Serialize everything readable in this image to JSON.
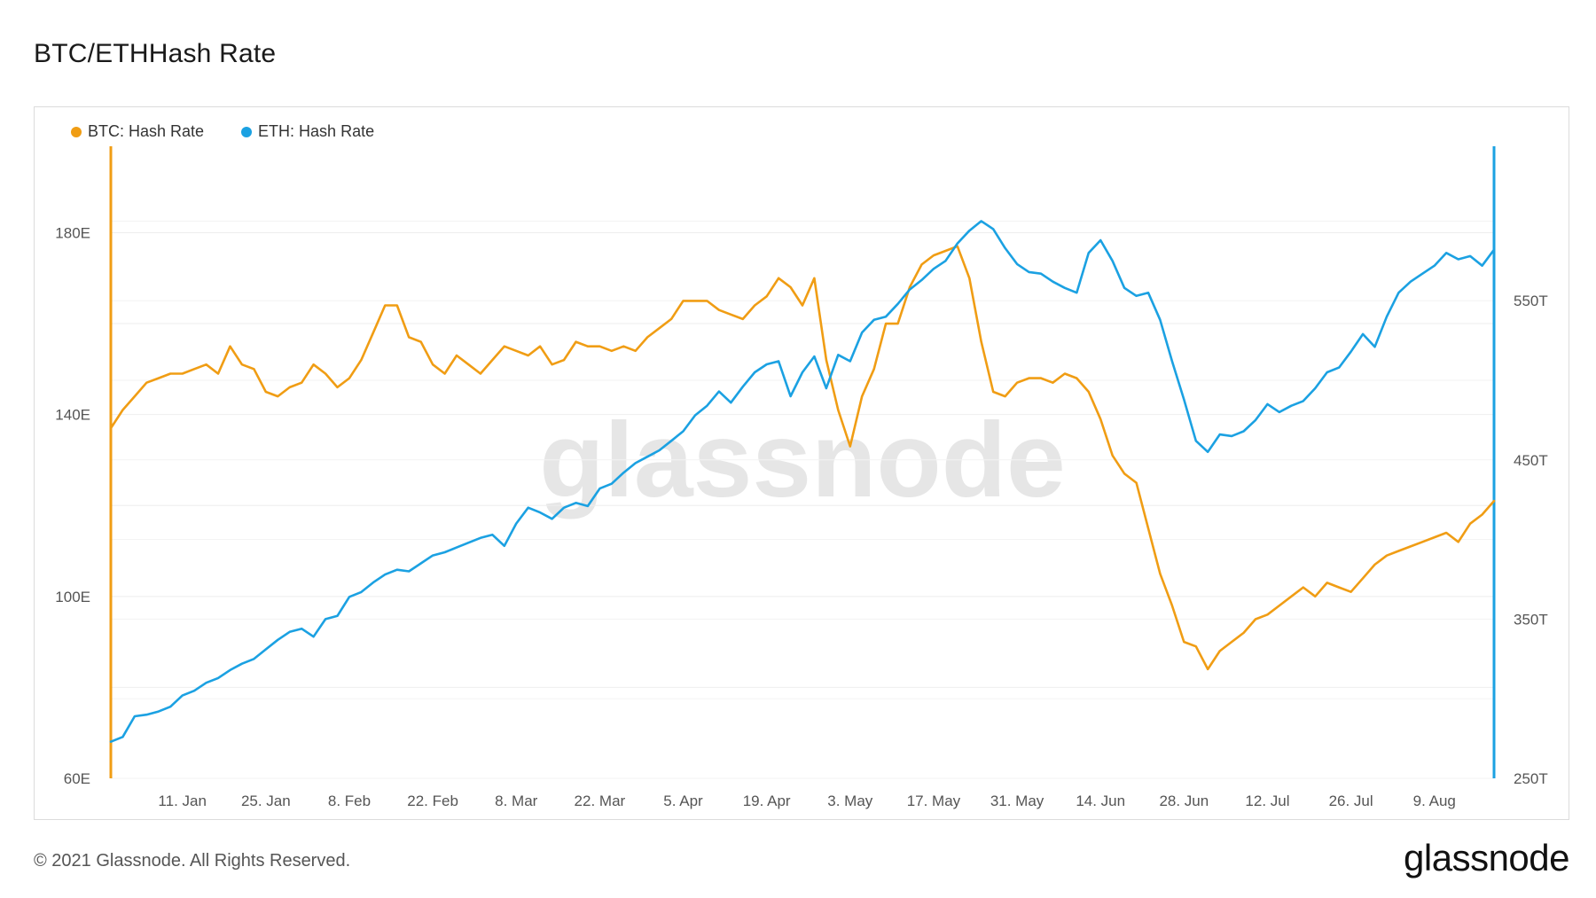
{
  "title": "BTC/ETHHash Rate",
  "legend": [
    {
      "label": "BTC: Hash Rate",
      "color": "#f09d14"
    },
    {
      "label": "ETH: Hash Rate",
      "color": "#1ba1e2"
    }
  ],
  "watermark": "glassnode",
  "footer": {
    "copyright": "© 2021 Glassnode. All Rights Reserved.",
    "logo": "glassnode"
  },
  "chart_data": {
    "type": "line",
    "title": "BTC/ETHHash Rate",
    "grid": true,
    "legend_position": "top-left",
    "x_start": "2020-12-30",
    "x_end": "2021-08-19",
    "x_ticks": [
      "11. Jan",
      "25. Jan",
      "8. Feb",
      "22. Feb",
      "8. Mar",
      "22. Mar",
      "5. Apr",
      "19. Apr",
      "3. May",
      "17. May",
      "31. May",
      "14. Jun",
      "28. Jun",
      "12. Jul",
      "26. Jul",
      "9. Aug"
    ],
    "x_tick_dates": [
      "2021-01-11",
      "2021-01-25",
      "2021-02-08",
      "2021-02-22",
      "2021-03-08",
      "2021-03-22",
      "2021-04-05",
      "2021-04-19",
      "2021-05-03",
      "2021-05-17",
      "2021-05-31",
      "2021-06-14",
      "2021-06-28",
      "2021-07-12",
      "2021-07-26",
      "2021-08-09"
    ],
    "y_left": {
      "ticks": [
        "60E",
        "100E",
        "140E",
        "180E"
      ],
      "tick_values": [
        60,
        100,
        140,
        180
      ],
      "range": [
        60,
        199
      ]
    },
    "y_right": {
      "ticks": [
        "250T",
        "350T",
        "450T",
        "550T"
      ],
      "tick_values": [
        250,
        350,
        450,
        550
      ],
      "range": [
        250,
        647
      ]
    },
    "series": [
      {
        "name": "BTC: Hash Rate",
        "axis": "left",
        "color": "#f09d14",
        "points": [
          [
            "2020-12-30",
            137
          ],
          [
            "2021-01-01",
            141
          ],
          [
            "2021-01-03",
            144
          ],
          [
            "2021-01-05",
            147
          ],
          [
            "2021-01-07",
            148
          ],
          [
            "2021-01-09",
            149
          ],
          [
            "2021-01-11",
            149
          ],
          [
            "2021-01-13",
            150
          ],
          [
            "2021-01-15",
            151
          ],
          [
            "2021-01-17",
            149
          ],
          [
            "2021-01-19",
            155
          ],
          [
            "2021-01-21",
            151
          ],
          [
            "2021-01-23",
            150
          ],
          [
            "2021-01-25",
            145
          ],
          [
            "2021-01-27",
            144
          ],
          [
            "2021-01-29",
            146
          ],
          [
            "2021-01-31",
            147
          ],
          [
            "2021-02-02",
            151
          ],
          [
            "2021-02-04",
            149
          ],
          [
            "2021-02-06",
            146
          ],
          [
            "2021-02-08",
            148
          ],
          [
            "2021-02-10",
            152
          ],
          [
            "2021-02-12",
            158
          ],
          [
            "2021-02-14",
            164
          ],
          [
            "2021-02-16",
            164
          ],
          [
            "2021-02-18",
            157
          ],
          [
            "2021-02-20",
            156
          ],
          [
            "2021-02-22",
            151
          ],
          [
            "2021-02-24",
            149
          ],
          [
            "2021-02-26",
            153
          ],
          [
            "2021-02-28",
            151
          ],
          [
            "2021-03-02",
            149
          ],
          [
            "2021-03-04",
            152
          ],
          [
            "2021-03-06",
            155
          ],
          [
            "2021-03-08",
            154
          ],
          [
            "2021-03-10",
            153
          ],
          [
            "2021-03-12",
            155
          ],
          [
            "2021-03-14",
            151
          ],
          [
            "2021-03-16",
            152
          ],
          [
            "2021-03-18",
            156
          ],
          [
            "2021-03-20",
            155
          ],
          [
            "2021-03-22",
            155
          ],
          [
            "2021-03-24",
            154
          ],
          [
            "2021-03-26",
            155
          ],
          [
            "2021-03-28",
            154
          ],
          [
            "2021-03-30",
            157
          ],
          [
            "2021-04-01",
            159
          ],
          [
            "2021-04-03",
            161
          ],
          [
            "2021-04-05",
            165
          ],
          [
            "2021-04-07",
            165
          ],
          [
            "2021-04-09",
            165
          ],
          [
            "2021-04-11",
            163
          ],
          [
            "2021-04-13",
            162
          ],
          [
            "2021-04-15",
            161
          ],
          [
            "2021-04-17",
            164
          ],
          [
            "2021-04-19",
            166
          ],
          [
            "2021-04-21",
            170
          ],
          [
            "2021-04-23",
            168
          ],
          [
            "2021-04-25",
            164
          ],
          [
            "2021-04-27",
            170
          ],
          [
            "2021-04-29",
            152
          ],
          [
            "2021-05-01",
            141
          ],
          [
            "2021-05-03",
            133
          ],
          [
            "2021-05-05",
            144
          ],
          [
            "2021-05-07",
            150
          ],
          [
            "2021-05-09",
            160
          ],
          [
            "2021-05-11",
            160
          ],
          [
            "2021-05-13",
            168
          ],
          [
            "2021-05-15",
            173
          ],
          [
            "2021-05-17",
            175
          ],
          [
            "2021-05-19",
            176
          ],
          [
            "2021-05-21",
            177
          ],
          [
            "2021-05-23",
            170
          ],
          [
            "2021-05-25",
            156
          ],
          [
            "2021-05-27",
            145
          ],
          [
            "2021-05-29",
            144
          ],
          [
            "2021-05-31",
            147
          ],
          [
            "2021-06-02",
            148
          ],
          [
            "2021-06-04",
            148
          ],
          [
            "2021-06-06",
            147
          ],
          [
            "2021-06-08",
            149
          ],
          [
            "2021-06-10",
            148
          ],
          [
            "2021-06-12",
            145
          ],
          [
            "2021-06-14",
            139
          ],
          [
            "2021-06-16",
            131
          ],
          [
            "2021-06-18",
            127
          ],
          [
            "2021-06-20",
            125
          ],
          [
            "2021-06-22",
            115
          ],
          [
            "2021-06-24",
            105
          ],
          [
            "2021-06-26",
            98
          ],
          [
            "2021-06-28",
            90
          ],
          [
            "2021-06-30",
            89
          ],
          [
            "2021-07-02",
            84
          ],
          [
            "2021-07-04",
            88
          ],
          [
            "2021-07-06",
            90
          ],
          [
            "2021-07-08",
            92
          ],
          [
            "2021-07-10",
            95
          ],
          [
            "2021-07-12",
            96
          ],
          [
            "2021-07-14",
            98
          ],
          [
            "2021-07-16",
            100
          ],
          [
            "2021-07-18",
            102
          ],
          [
            "2021-07-20",
            100
          ],
          [
            "2021-07-22",
            103
          ],
          [
            "2021-07-24",
            102
          ],
          [
            "2021-07-26",
            101
          ],
          [
            "2021-07-28",
            104
          ],
          [
            "2021-07-30",
            107
          ],
          [
            "2021-08-01",
            109
          ],
          [
            "2021-08-03",
            110
          ],
          [
            "2021-08-05",
            111
          ],
          [
            "2021-08-07",
            112
          ],
          [
            "2021-08-09",
            113
          ],
          [
            "2021-08-11",
            114
          ],
          [
            "2021-08-13",
            112
          ],
          [
            "2021-08-15",
            116
          ],
          [
            "2021-08-17",
            118
          ],
          [
            "2021-08-19",
            121
          ]
        ]
      },
      {
        "name": "ETH: Hash Rate",
        "axis": "right",
        "color": "#1ba1e2",
        "points": [
          [
            "2020-12-30",
            273
          ],
          [
            "2021-01-01",
            276
          ],
          [
            "2021-01-03",
            289
          ],
          [
            "2021-01-05",
            290
          ],
          [
            "2021-01-07",
            292
          ],
          [
            "2021-01-09",
            295
          ],
          [
            "2021-01-11",
            302
          ],
          [
            "2021-01-13",
            305
          ],
          [
            "2021-01-15",
            310
          ],
          [
            "2021-01-17",
            313
          ],
          [
            "2021-01-19",
            318
          ],
          [
            "2021-01-21",
            322
          ],
          [
            "2021-01-23",
            325
          ],
          [
            "2021-01-25",
            331
          ],
          [
            "2021-01-27",
            337
          ],
          [
            "2021-01-29",
            342
          ],
          [
            "2021-01-31",
            344
          ],
          [
            "2021-02-02",
            339
          ],
          [
            "2021-02-04",
            350
          ],
          [
            "2021-02-06",
            352
          ],
          [
            "2021-02-08",
            364
          ],
          [
            "2021-02-10",
            367
          ],
          [
            "2021-02-12",
            373
          ],
          [
            "2021-02-14",
            378
          ],
          [
            "2021-02-16",
            381
          ],
          [
            "2021-02-18",
            380
          ],
          [
            "2021-02-20",
            385
          ],
          [
            "2021-02-22",
            390
          ],
          [
            "2021-02-24",
            392
          ],
          [
            "2021-02-26",
            395
          ],
          [
            "2021-02-28",
            398
          ],
          [
            "2021-03-02",
            401
          ],
          [
            "2021-03-04",
            403
          ],
          [
            "2021-03-06",
            396
          ],
          [
            "2021-03-08",
            410
          ],
          [
            "2021-03-10",
            420
          ],
          [
            "2021-03-12",
            417
          ],
          [
            "2021-03-14",
            413
          ],
          [
            "2021-03-16",
            420
          ],
          [
            "2021-03-18",
            423
          ],
          [
            "2021-03-20",
            421
          ],
          [
            "2021-03-22",
            432
          ],
          [
            "2021-03-24",
            435
          ],
          [
            "2021-03-26",
            442
          ],
          [
            "2021-03-28",
            448
          ],
          [
            "2021-03-30",
            452
          ],
          [
            "2021-04-01",
            456
          ],
          [
            "2021-04-03",
            462
          ],
          [
            "2021-04-05",
            468
          ],
          [
            "2021-04-07",
            478
          ],
          [
            "2021-04-09",
            484
          ],
          [
            "2021-04-11",
            493
          ],
          [
            "2021-04-13",
            486
          ],
          [
            "2021-04-15",
            496
          ],
          [
            "2021-04-17",
            505
          ],
          [
            "2021-04-19",
            510
          ],
          [
            "2021-04-21",
            512
          ],
          [
            "2021-04-23",
            490
          ],
          [
            "2021-04-25",
            505
          ],
          [
            "2021-04-27",
            515
          ],
          [
            "2021-04-29",
            495
          ],
          [
            "2021-05-01",
            516
          ],
          [
            "2021-05-03",
            512
          ],
          [
            "2021-05-05",
            530
          ],
          [
            "2021-05-07",
            538
          ],
          [
            "2021-05-09",
            540
          ],
          [
            "2021-05-11",
            548
          ],
          [
            "2021-05-13",
            557
          ],
          [
            "2021-05-15",
            563
          ],
          [
            "2021-05-17",
            570
          ],
          [
            "2021-05-19",
            575
          ],
          [
            "2021-05-21",
            586
          ],
          [
            "2021-05-23",
            594
          ],
          [
            "2021-05-25",
            600
          ],
          [
            "2021-05-27",
            595
          ],
          [
            "2021-05-29",
            583
          ],
          [
            "2021-05-31",
            573
          ],
          [
            "2021-06-02",
            568
          ],
          [
            "2021-06-04",
            567
          ],
          [
            "2021-06-06",
            562
          ],
          [
            "2021-06-08",
            558
          ],
          [
            "2021-06-10",
            555
          ],
          [
            "2021-06-12",
            580
          ],
          [
            "2021-06-14",
            588
          ],
          [
            "2021-06-16",
            575
          ],
          [
            "2021-06-18",
            558
          ],
          [
            "2021-06-20",
            553
          ],
          [
            "2021-06-22",
            555
          ],
          [
            "2021-06-24",
            538
          ],
          [
            "2021-06-26",
            512
          ],
          [
            "2021-06-28",
            488
          ],
          [
            "2021-06-30",
            462
          ],
          [
            "2021-07-02",
            455
          ],
          [
            "2021-07-04",
            466
          ],
          [
            "2021-07-06",
            465
          ],
          [
            "2021-07-08",
            468
          ],
          [
            "2021-07-10",
            475
          ],
          [
            "2021-07-12",
            485
          ],
          [
            "2021-07-14",
            480
          ],
          [
            "2021-07-16",
            484
          ],
          [
            "2021-07-18",
            487
          ],
          [
            "2021-07-20",
            495
          ],
          [
            "2021-07-22",
            505
          ],
          [
            "2021-07-24",
            508
          ],
          [
            "2021-07-26",
            518
          ],
          [
            "2021-07-28",
            529
          ],
          [
            "2021-07-30",
            521
          ],
          [
            "2021-08-01",
            540
          ],
          [
            "2021-08-03",
            555
          ],
          [
            "2021-08-05",
            562
          ],
          [
            "2021-08-07",
            567
          ],
          [
            "2021-08-09",
            572
          ],
          [
            "2021-08-11",
            580
          ],
          [
            "2021-08-13",
            576
          ],
          [
            "2021-08-15",
            578
          ],
          [
            "2021-08-17",
            572
          ],
          [
            "2021-08-19",
            582
          ]
        ]
      }
    ]
  }
}
